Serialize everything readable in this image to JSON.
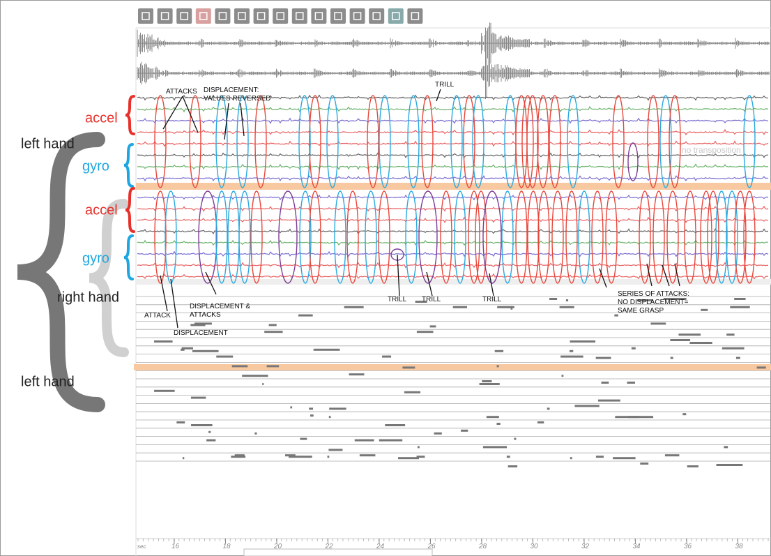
{
  "side_labels": {
    "left_hand_top": "left hand",
    "accel_top": "accel",
    "gyro_top": "gyro",
    "accel_bottom": "accel",
    "gyro_bottom": "gyro",
    "right_hand": "right hand",
    "left_hand_bottom": "left hand"
  },
  "annotations": [
    {
      "lines": [
        "ATTACKS"
      ]
    },
    {
      "lines": [
        "DISPLACEMENT:",
        "VALUES REVERSED"
      ]
    },
    {
      "lines": [
        "TRILL"
      ]
    },
    {
      "lines": [
        "TRILL"
      ]
    },
    {
      "lines": [
        "TRILL"
      ]
    },
    {
      "lines": [
        "TRILL"
      ]
    },
    {
      "lines": [
        "ATTACK"
      ]
    },
    {
      "lines": [
        "DISPLACEMENT & ",
        "ATTACKS"
      ]
    },
    {
      "lines": [
        "DISPLACEMENT"
      ]
    },
    {
      "lines": [
        "SERIES OF ATTACKS:",
        "NO DISPLACEMENT=",
        "SAME GRASP"
      ]
    }
  ],
  "overlay_text": "no transposition",
  "timeline": {
    "unit": "sec",
    "labels": [
      "16",
      "18",
      "20",
      "22",
      "24",
      "26",
      "28",
      "30",
      "32",
      "34",
      "36",
      "38"
    ]
  }
}
